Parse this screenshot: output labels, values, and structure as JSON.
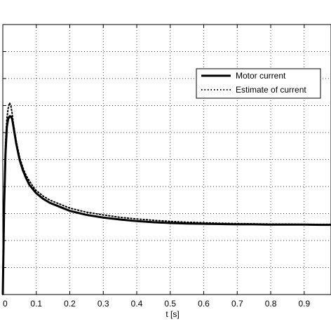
{
  "chart_data": {
    "type": "line",
    "xlabel": "t [s]",
    "ylabel": "",
    "title": "",
    "xlim": [
      0,
      0.98
    ],
    "ylim": [
      0,
      1
    ],
    "x_ticks": [
      0,
      0.1,
      0.2,
      0.3,
      0.4,
      0.5,
      0.6,
      0.7,
      0.8,
      0.9
    ],
    "x_tick_labels": [
      "0",
      "0.1",
      "0.2",
      "0.3",
      "0.4",
      "0.5",
      "0.6",
      "0.7",
      "0.8",
      "0.9"
    ],
    "y_gridlines": [
      0.1,
      0.2,
      0.3,
      0.4,
      0.5,
      0.6,
      0.7,
      0.8,
      0.9
    ],
    "grid": true,
    "legend_position": "top-right",
    "series": [
      {
        "name": "Motor current",
        "style": "solid",
        "color": "#000000",
        "x": [
          0,
          0.004,
          0.008,
          0.012,
          0.016,
          0.02,
          0.024,
          0.028,
          0.032,
          0.036,
          0.04,
          0.045,
          0.05,
          0.06,
          0.07,
          0.08,
          0.09,
          0.1,
          0.12,
          0.14,
          0.16,
          0.18,
          0.2,
          0.25,
          0.3,
          0.35,
          0.4,
          0.45,
          0.5,
          0.55,
          0.6,
          0.65,
          0.7,
          0.75,
          0.8,
          0.85,
          0.9,
          0.95,
          0.98
        ],
        "y": [
          0.0,
          0.33,
          0.52,
          0.62,
          0.65,
          0.66,
          0.66,
          0.65,
          0.62,
          0.59,
          0.56,
          0.53,
          0.5,
          0.46,
          0.43,
          0.405,
          0.39,
          0.375,
          0.355,
          0.34,
          0.33,
          0.32,
          0.31,
          0.295,
          0.285,
          0.278,
          0.272,
          0.268,
          0.265,
          0.263,
          0.262,
          0.261,
          0.26,
          0.26,
          0.259,
          0.259,
          0.259,
          0.258,
          0.258
        ]
      },
      {
        "name": "Estimate of current",
        "style": "dotted",
        "color": "#000000",
        "x": [
          0,
          0.004,
          0.008,
          0.012,
          0.016,
          0.02,
          0.024,
          0.028,
          0.032,
          0.036,
          0.04,
          0.045,
          0.05,
          0.06,
          0.07,
          0.08,
          0.09,
          0.1,
          0.12,
          0.14,
          0.16,
          0.18,
          0.2,
          0.25,
          0.3,
          0.35,
          0.4,
          0.45,
          0.5,
          0.55,
          0.6,
          0.65,
          0.7,
          0.75,
          0.8,
          0.85,
          0.9,
          0.95,
          0.98
        ],
        "y": [
          0.0,
          0.36,
          0.56,
          0.65,
          0.69,
          0.71,
          0.7,
          0.67,
          0.63,
          0.6,
          0.57,
          0.54,
          0.51,
          0.47,
          0.44,
          0.42,
          0.4,
          0.385,
          0.365,
          0.35,
          0.34,
          0.33,
          0.32,
          0.305,
          0.295,
          0.286,
          0.28,
          0.275,
          0.271,
          0.268,
          0.266,
          0.264,
          0.263,
          0.262,
          0.261,
          0.261,
          0.26,
          0.26,
          0.26
        ]
      }
    ]
  }
}
